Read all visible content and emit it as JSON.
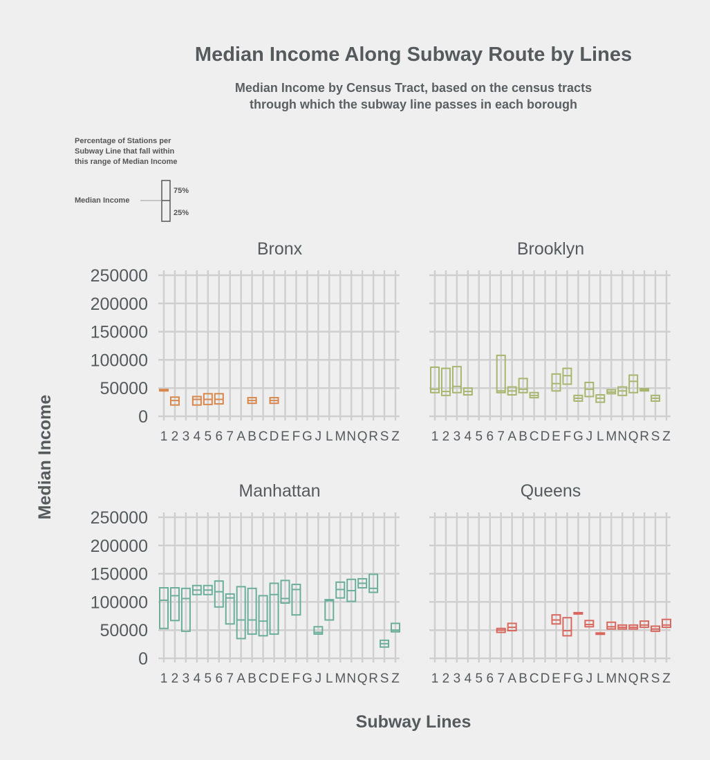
{
  "header": {
    "title": "Median Income Along Subway Route by Lines",
    "subtitle_line1": "Median Income by Census Tract, based on the census tracts",
    "subtitle_line2": "through which the subway line passes in each borough"
  },
  "legend": {
    "desc_line1": "Percentage of Stations per",
    "desc_line2": "Subway Line that fall within",
    "desc_line3": "this range of Median Income",
    "median_label": "Median Income",
    "upper_label": "75%",
    "lower_label": "25%"
  },
  "axes": {
    "xlabel": "Subway Lines",
    "ylabel": "Median Income"
  },
  "chart_data": {
    "type": "boxplot",
    "categories": [
      "1",
      "2",
      "3",
      "4",
      "5",
      "6",
      "7",
      "A",
      "B",
      "C",
      "D",
      "E",
      "F",
      "G",
      "J",
      "L",
      "M",
      "N",
      "Q",
      "R",
      "S",
      "Z"
    ],
    "ylim": [
      0,
      260000
    ],
    "yticks": [
      0,
      50000,
      100000,
      150000,
      200000,
      250000
    ],
    "grid": true,
    "facets": [
      {
        "name": "Bronx",
        "color": "#d9864a",
        "boxes": [
          {
            "line": "1",
            "q1": 45500,
            "median": 46500,
            "q3": 47500
          },
          {
            "line": "2",
            "q1": 20000,
            "median": 28000,
            "q3": 34000
          },
          {
            "line": "4",
            "q1": 20000,
            "median": 30000,
            "q3": 35000
          },
          {
            "line": "5",
            "q1": 21000,
            "median": 30000,
            "q3": 40000
          },
          {
            "line": "6",
            "q1": 22000,
            "median": 30000,
            "q3": 40000
          },
          {
            "line": "B",
            "q1": 23000,
            "median": 28000,
            "q3": 33000
          },
          {
            "line": "D",
            "q1": 23000,
            "median": 28000,
            "q3": 33000
          }
        ]
      },
      {
        "name": "Brooklyn",
        "color": "#a7b56e",
        "boxes": [
          {
            "line": "1",
            "q1": 42000,
            "median": 48000,
            "q3": 87000
          },
          {
            "line": "2",
            "q1": 37000,
            "median": 44000,
            "q3": 85000
          },
          {
            "line": "3",
            "q1": 42000,
            "median": 53000,
            "q3": 88000
          },
          {
            "line": "4",
            "q1": 38000,
            "median": 44000,
            "q3": 50000
          },
          {
            "line": "7",
            "q1": 42000,
            "median": 45000,
            "q3": 108000
          },
          {
            "line": "A",
            "q1": 38000,
            "median": 45000,
            "q3": 52000
          },
          {
            "line": "B",
            "q1": 42000,
            "median": 48000,
            "q3": 67000
          },
          {
            "line": "C",
            "q1": 33000,
            "median": 37000,
            "q3": 42000
          },
          {
            "line": "E",
            "q1": 45000,
            "median": 58000,
            "q3": 75000
          },
          {
            "line": "F",
            "q1": 57000,
            "median": 72000,
            "q3": 85000
          },
          {
            "line": "G",
            "q1": 27000,
            "median": 32000,
            "q3": 37000
          },
          {
            "line": "J",
            "q1": 35000,
            "median": 48000,
            "q3": 60000
          },
          {
            "line": "L",
            "q1": 25000,
            "median": 32000,
            "q3": 38000
          },
          {
            "line": "M",
            "q1": 40000,
            "median": 43000,
            "q3": 47000
          },
          {
            "line": "N",
            "q1": 37000,
            "median": 45000,
            "q3": 52000
          },
          {
            "line": "Q",
            "q1": 42000,
            "median": 62000,
            "q3": 73000
          },
          {
            "line": "R",
            "q1": 45000,
            "median": 47000,
            "q3": 49000
          },
          {
            "line": "S",
            "q1": 27000,
            "median": 32000,
            "q3": 37000
          }
        ]
      },
      {
        "name": "Manhattan",
        "color": "#6aae9a",
        "boxes": [
          {
            "line": "1",
            "q1": 53000,
            "median": 103000,
            "q3": 125000
          },
          {
            "line": "2",
            "q1": 67000,
            "median": 111000,
            "q3": 125000
          },
          {
            "line": "3",
            "q1": 48000,
            "median": 106000,
            "q3": 124000
          },
          {
            "line": "4",
            "q1": 113000,
            "median": 121000,
            "q3": 129000
          },
          {
            "line": "5",
            "q1": 113000,
            "median": 121000,
            "q3": 129000
          },
          {
            "line": "6",
            "q1": 91000,
            "median": 118000,
            "q3": 137000
          },
          {
            "line": "7",
            "q1": 61000,
            "median": 107000,
            "q3": 114000
          },
          {
            "line": "A",
            "q1": 35000,
            "median": 68000,
            "q3": 127000
          },
          {
            "line": "B",
            "q1": 43000,
            "median": 68000,
            "q3": 124000
          },
          {
            "line": "C",
            "q1": 40000,
            "median": 66000,
            "q3": 111000
          },
          {
            "line": "D",
            "q1": 43000,
            "median": 113000,
            "q3": 133000
          },
          {
            "line": "E",
            "q1": 98000,
            "median": 106000,
            "q3": 138000
          },
          {
            "line": "F",
            "q1": 77000,
            "median": 122000,
            "q3": 131000
          },
          {
            "line": "J",
            "q1": 43000,
            "median": 46000,
            "q3": 56000
          },
          {
            "line": "L",
            "q1": 68000,
            "median": 102000,
            "q3": 104000
          },
          {
            "line": "M",
            "q1": 107000,
            "median": 122000,
            "q3": 135000
          },
          {
            "line": "N",
            "q1": 101000,
            "median": 120000,
            "q3": 140000
          },
          {
            "line": "Q",
            "q1": 125000,
            "median": 133000,
            "q3": 141000
          },
          {
            "line": "R",
            "q1": 117000,
            "median": 124000,
            "q3": 149000
          },
          {
            "line": "S",
            "q1": 20000,
            "median": 26000,
            "q3": 32000
          },
          {
            "line": "Z",
            "q1": 47000,
            "median": 50000,
            "q3": 62000
          }
        ]
      },
      {
        "name": "Queens",
        "color": "#d9675e",
        "boxes": [
          {
            "line": "7",
            "q1": 46000,
            "median": 50000,
            "q3": 53000
          },
          {
            "line": "A",
            "q1": 49000,
            "median": 55000,
            "q3": 62000
          },
          {
            "line": "E",
            "q1": 61000,
            "median": 68000,
            "q3": 77000
          },
          {
            "line": "F",
            "q1": 40000,
            "median": 49000,
            "q3": 72000
          },
          {
            "line": "G",
            "q1": 79000,
            "median": 80000,
            "q3": 81000
          },
          {
            "line": "J",
            "q1": 56000,
            "median": 60000,
            "q3": 67000
          },
          {
            "line": "L",
            "q1": 44000,
            "median": 44500,
            "q3": 45000
          },
          {
            "line": "M",
            "q1": 52000,
            "median": 56000,
            "q3": 64000
          },
          {
            "line": "N",
            "q1": 52000,
            "median": 55000,
            "q3": 59000
          },
          {
            "line": "Q",
            "q1": 52000,
            "median": 55000,
            "q3": 59000
          },
          {
            "line": "R",
            "q1": 55000,
            "median": 59000,
            "q3": 66000
          },
          {
            "line": "S",
            "q1": 48000,
            "median": 52000,
            "q3": 57000
          },
          {
            "line": "Z",
            "q1": 55000,
            "median": 59000,
            "q3": 69000
          }
        ]
      }
    ]
  }
}
